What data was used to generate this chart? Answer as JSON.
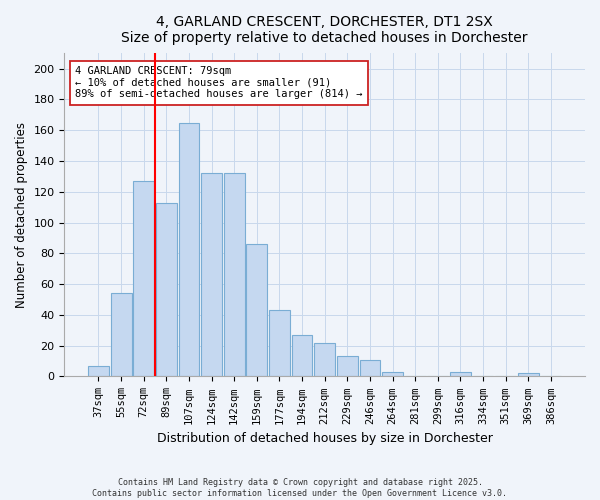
{
  "title": "4, GARLAND CRESCENT, DORCHESTER, DT1 2SX",
  "subtitle": "Size of property relative to detached houses in Dorchester",
  "xlabel": "Distribution of detached houses by size in Dorchester",
  "ylabel": "Number of detached properties",
  "bin_labels": [
    "37sqm",
    "55sqm",
    "72sqm",
    "89sqm",
    "107sqm",
    "124sqm",
    "142sqm",
    "159sqm",
    "177sqm",
    "194sqm",
    "212sqm",
    "229sqm",
    "246sqm",
    "264sqm",
    "281sqm",
    "299sqm",
    "316sqm",
    "334sqm",
    "351sqm",
    "369sqm",
    "386sqm"
  ],
  "bar_heights": [
    7,
    54,
    127,
    113,
    165,
    132,
    132,
    86,
    43,
    27,
    22,
    13,
    11,
    3,
    0,
    0,
    3,
    0,
    0,
    2,
    0
  ],
  "bar_color": "#c5d8f0",
  "bar_edge_color": "#7aadd4",
  "vline_x_idx": 2,
  "vline_color": "red",
  "ylim": [
    0,
    210
  ],
  "yticks": [
    0,
    20,
    40,
    60,
    80,
    100,
    120,
    140,
    160,
    180,
    200
  ],
  "annotation_box_text": "4 GARLAND CRESCENT: 79sqm\n← 10% of detached houses are smaller (91)\n89% of semi-detached houses are larger (814) →",
  "footer_line1": "Contains HM Land Registry data © Crown copyright and database right 2025.",
  "footer_line2": "Contains public sector information licensed under the Open Government Licence v3.0.",
  "bg_color": "#f0f4fa",
  "grid_color": "#c8d8ec"
}
